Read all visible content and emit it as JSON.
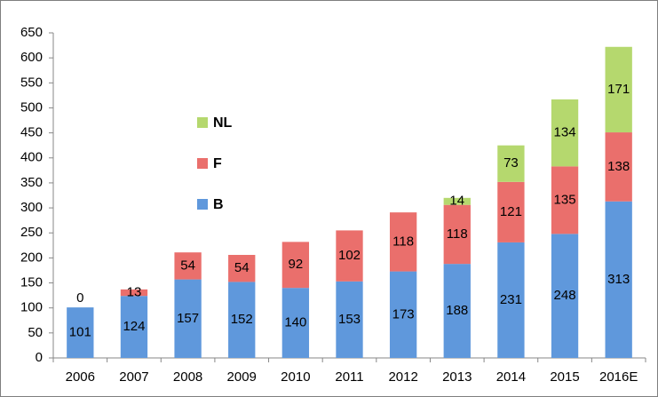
{
  "chart_data": {
    "type": "stacked_bar",
    "categories": [
      "2006",
      "2007",
      "2008",
      "2009",
      "2010",
      "2011",
      "2012",
      "2013",
      "2014",
      "2015",
      "2016E"
    ],
    "series": [
      {
        "name": "B",
        "color": "#5f98dc",
        "values": [
          101,
          124,
          157,
          152,
          140,
          153,
          173,
          188,
          231,
          248,
          313
        ]
      },
      {
        "name": "F",
        "color": "#ea6f6c",
        "values": [
          0,
          13,
          54,
          54,
          92,
          102,
          118,
          118,
          121,
          135,
          138
        ]
      },
      {
        "name": "NL",
        "color": "#b5d86e",
        "values": [
          null,
          null,
          null,
          null,
          null,
          null,
          null,
          14,
          73,
          134,
          171
        ]
      }
    ],
    "ylim": [
      0,
      650
    ],
    "yticks": [
      0,
      50,
      100,
      150,
      200,
      250,
      300,
      350,
      400,
      450,
      500,
      550,
      600,
      650
    ],
    "grid": false,
    "legend": "inside-left"
  }
}
